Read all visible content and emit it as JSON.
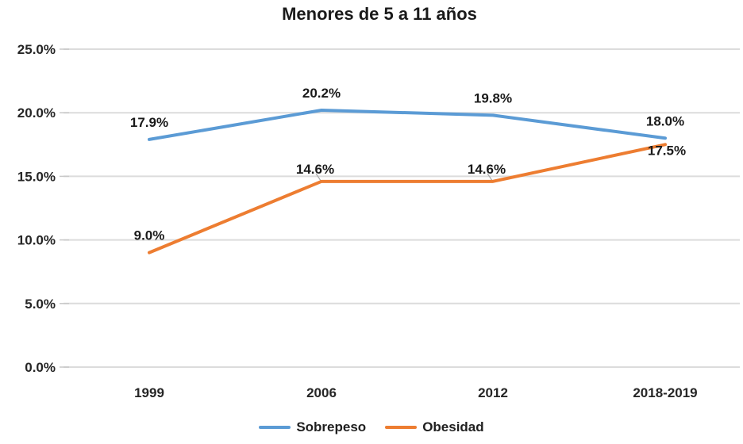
{
  "chart_data": {
    "type": "line",
    "title": "Menores de 5 a 11 años",
    "categories": [
      "1999",
      "2006",
      "2012",
      "2018-2019"
    ],
    "series": [
      {
        "name": "Sobrepeso",
        "color": "#5B9BD5",
        "values": [
          17.9,
          20.2,
          19.8,
          18.0
        ],
        "point_labels": [
          "17.9%",
          "20.2%",
          "19.8%",
          "18.0%"
        ]
      },
      {
        "name": "Obesidad",
        "color": "#ED7D31",
        "values": [
          9.0,
          14.6,
          14.6,
          17.5
        ],
        "point_labels": [
          "9.0%",
          "14.6%",
          "14.6%",
          "17.5%"
        ]
      }
    ],
    "y_axis": {
      "min": 0,
      "max": 25,
      "tick_values": [
        0,
        5,
        10,
        15,
        20,
        25
      ],
      "tick_labels": [
        "0.0%",
        "5.0%",
        "10.0%",
        "15.0%",
        "20.0%",
        "25.0%"
      ]
    },
    "grid": true,
    "legend_position": "bottom",
    "styles": {
      "gridline_color": "#DCDCDC",
      "axis_tick_color": "#C8C8C8",
      "leader_color": "#A6A6A6",
      "background": "#FFFFFF"
    },
    "label_offsets": [
      [
        [
          0,
          -16
        ],
        [
          0,
          -16
        ],
        [
          0,
          -16
        ],
        [
          0,
          -16
        ]
      ],
      [
        [
          0,
          -16
        ],
        [
          -8,
          -10
        ],
        [
          -8,
          -10
        ],
        [
          2,
          13
        ]
      ]
    ],
    "leader_lines": [
      {
        "series": 1,
        "index": 1
      },
      {
        "series": 1,
        "index": 2
      }
    ]
  }
}
